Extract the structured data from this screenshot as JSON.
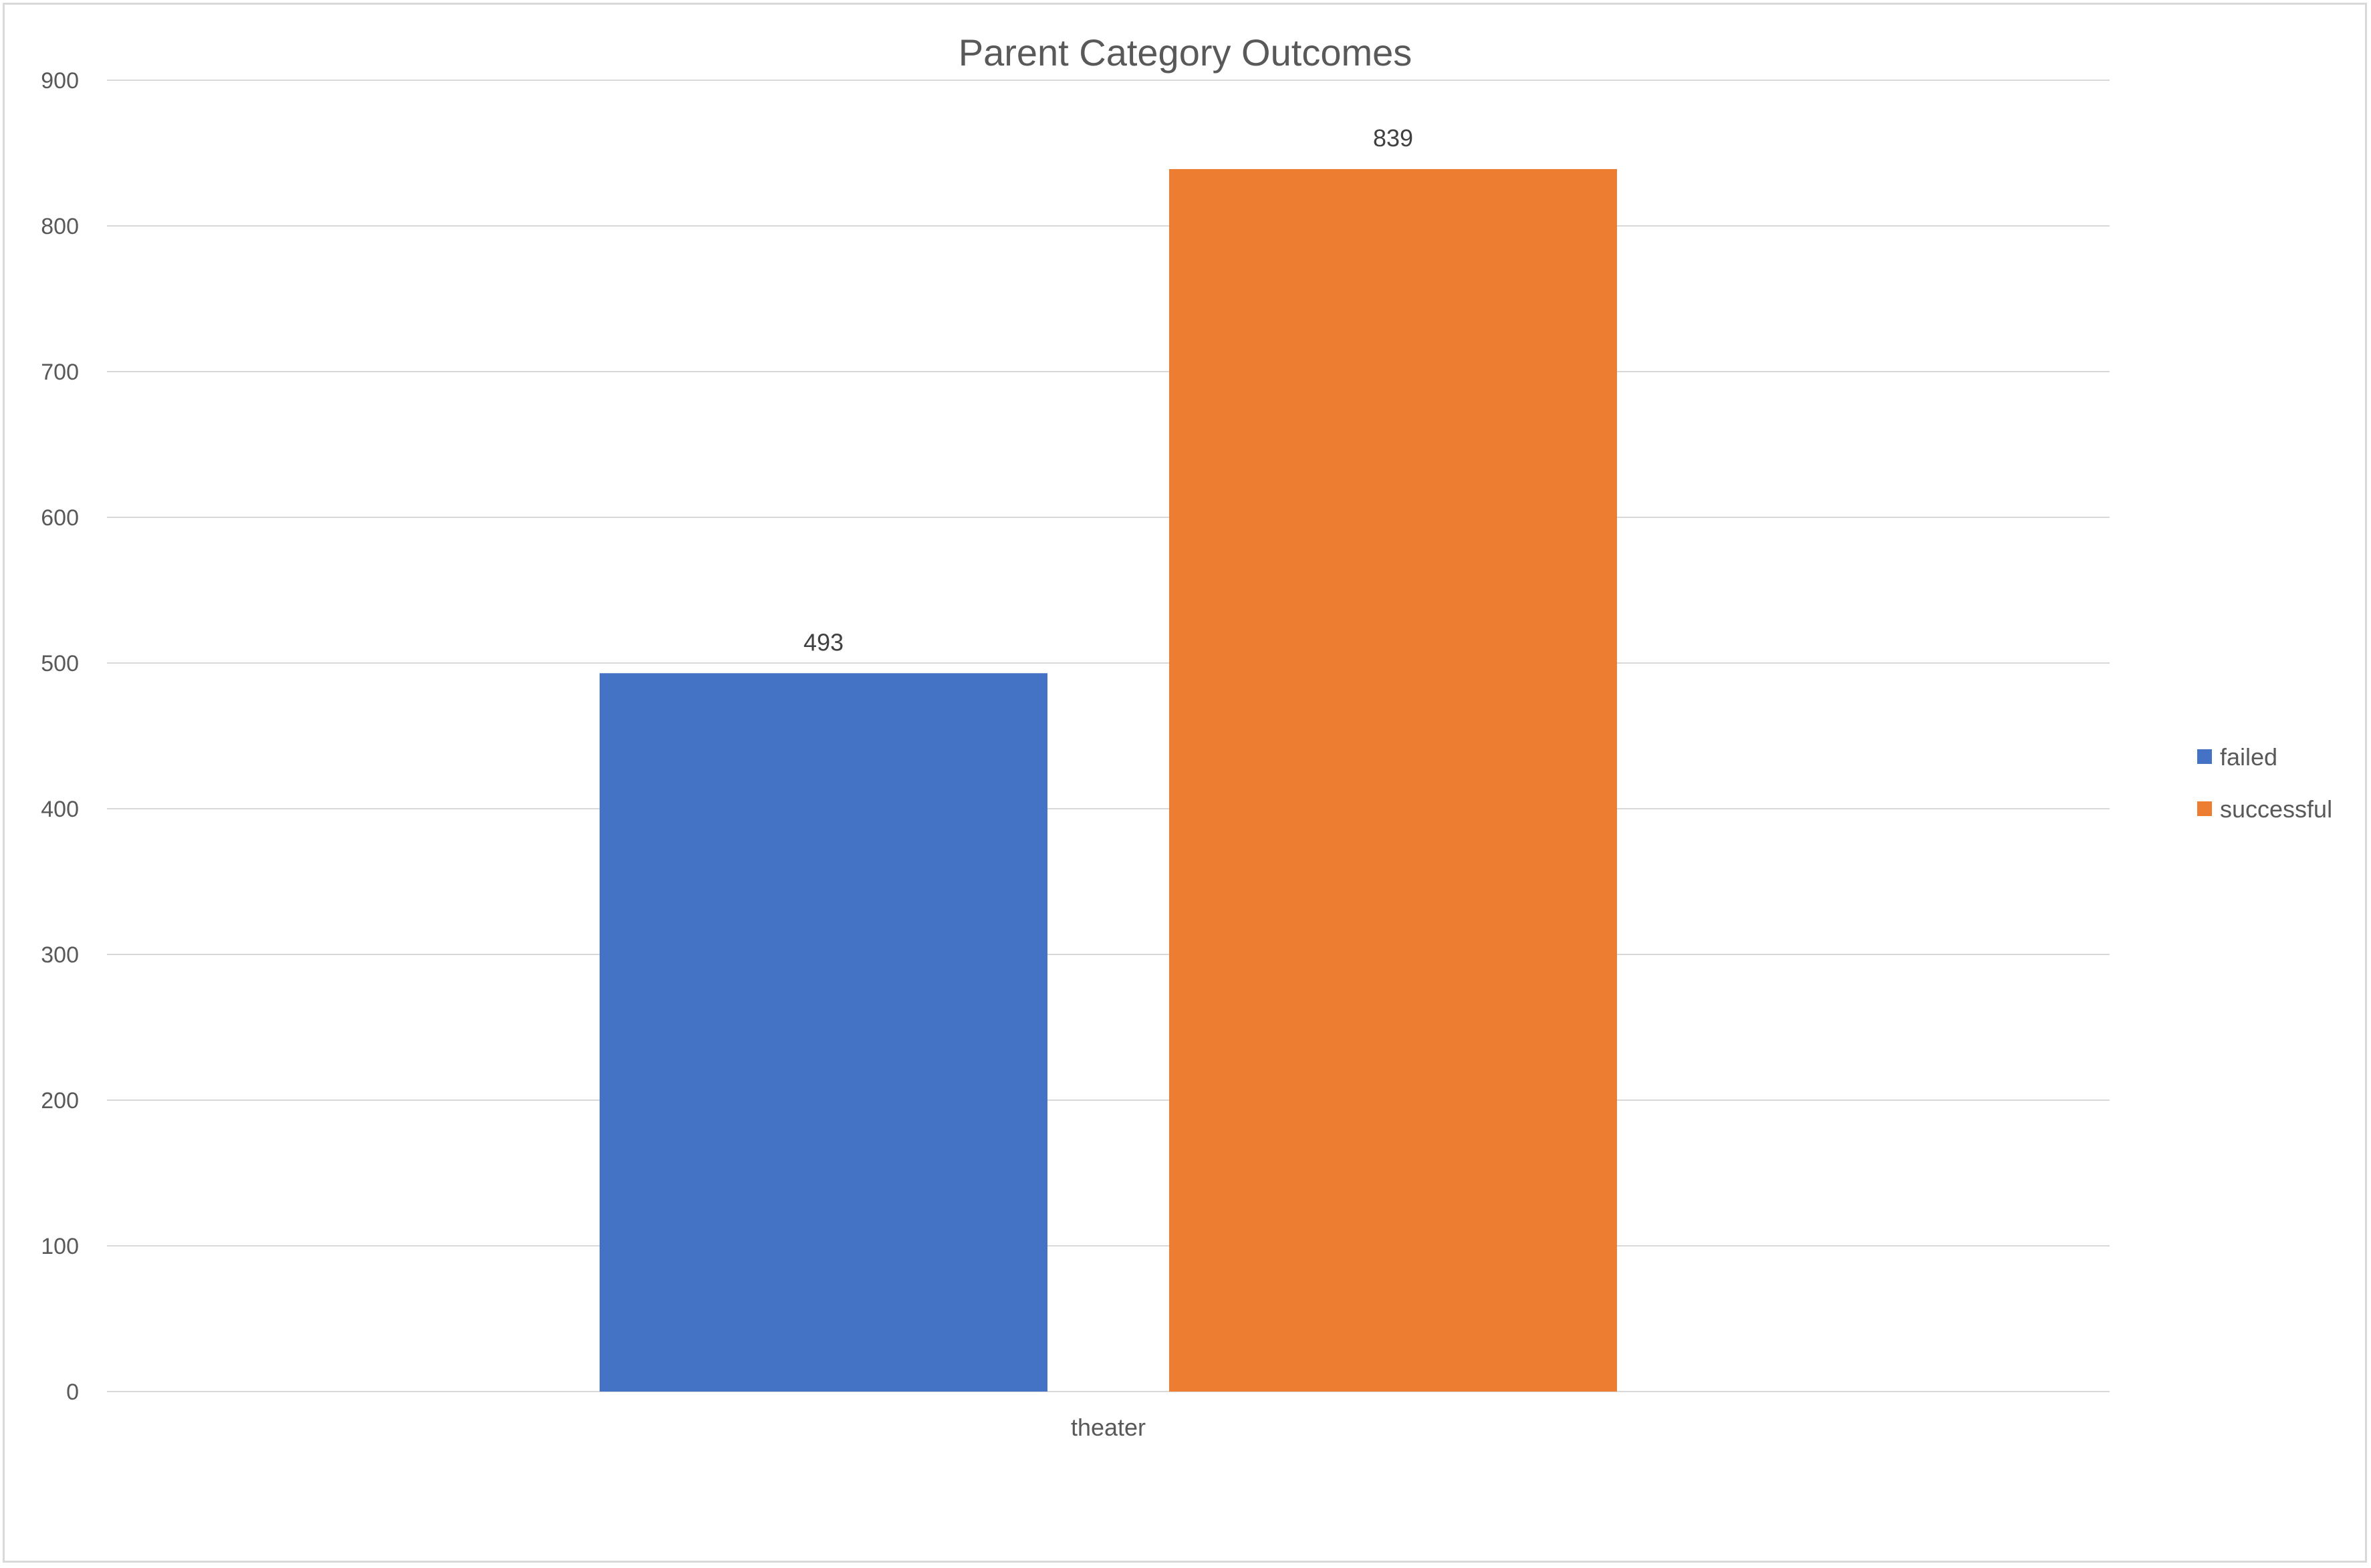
{
  "chart_data": {
    "type": "bar",
    "title": "Parent Category Outcomes",
    "xlabel": "",
    "ylabel": "",
    "categories": [
      "theater"
    ],
    "series": [
      {
        "name": "failed",
        "values": [
          493
        ],
        "color": "#4472C4"
      },
      {
        "name": "successful",
        "values": [
          839
        ],
        "color": "#ED7D31"
      }
    ],
    "ylim": [
      0,
      900
    ],
    "yticks": [
      "0",
      "100",
      "200",
      "300",
      "400",
      "500",
      "600",
      "700",
      "800",
      "900"
    ],
    "grid": true,
    "legend_position": "right",
    "data_labels": true
  }
}
